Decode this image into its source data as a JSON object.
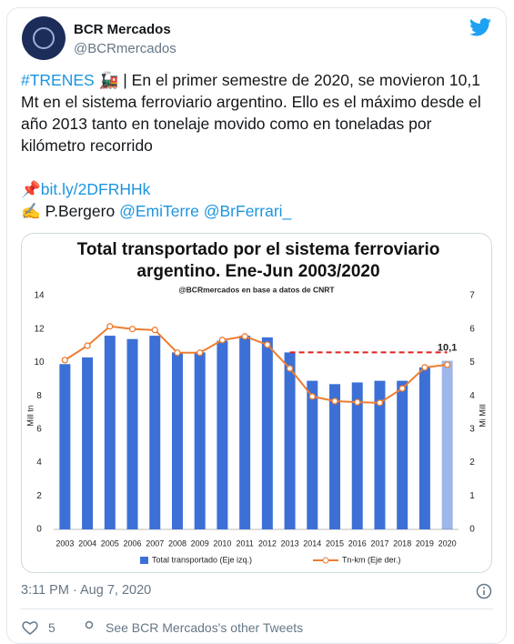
{
  "tweet": {
    "name": "BCR Mercados",
    "handle": "@BCRmercados",
    "text": {
      "hashtag": "#TRENES",
      "emoji": "🚂",
      "body": "| En el primer semestre de 2020, se movieron 10,1 Mt en el sistema ferroviario argentino. Ello es el máximo desde el año 2013 tanto en tonelaje movido como en toneladas por kilómetro recorrido",
      "pin": "📌",
      "link": "bit.ly/2DFRHHk",
      "writing": "✍️",
      "author": "P.Bergero",
      "mentions": [
        "@EmiTerre",
        "@BrFerrari_"
      ]
    },
    "timestamp": "3:11 PM · Aug 7, 2020",
    "likes": 5,
    "more": "See BCR Mercados's other Tweets"
  },
  "chart_data": {
    "type": "bar_line",
    "title": "Total transportado por el sistema ferroviario argentino. Ene-Jun 2003/2020",
    "subtitle": "@BCRmercados en base a datos de CNRT",
    "categories": [
      "2003",
      "2004",
      "2005",
      "2006",
      "2007",
      "2008",
      "2009",
      "2010",
      "2011",
      "2012",
      "2013",
      "2014",
      "2015",
      "2016",
      "2017",
      "2018",
      "2019",
      "2020"
    ],
    "series": [
      {
        "name": "Total transportado (Eje izq.)",
        "color": "#3d70d6",
        "values": [
          9.9,
          10.3,
          11.6,
          11.4,
          11.6,
          10.6,
          10.6,
          11.3,
          11.6,
          11.5,
          10.6,
          8.9,
          8.7,
          8.8,
          8.9,
          8.9,
          9.7,
          10.1
        ],
        "value_labels": [
          null,
          null,
          null,
          null,
          null,
          null,
          null,
          null,
          null,
          null,
          null,
          null,
          null,
          null,
          null,
          null,
          null,
          "10,1"
        ]
      },
      {
        "name": "Tn-km (Eje der.)",
        "color": "#ed7d31",
        "axis": "y2",
        "values": [
          5.07,
          5.5,
          6.08,
          6.0,
          5.97,
          5.29,
          5.29,
          5.67,
          5.78,
          5.53,
          4.82,
          3.98,
          3.84,
          3.81,
          3.79,
          4.22,
          4.85,
          4.93
        ]
      }
    ],
    "ylabel": "Mill tn",
    "y2label": "Mi Mill",
    "ylim": [
      0,
      14
    ],
    "yticks": [
      0,
      2,
      4,
      6,
      8,
      10,
      12,
      14
    ],
    "y2lim": [
      0,
      7
    ],
    "y2ticks": [
      0,
      1,
      2,
      3,
      4,
      5,
      6,
      7
    ],
    "reference_line": {
      "value": 10.6,
      "from": "2013",
      "color": "#e0201c"
    }
  }
}
